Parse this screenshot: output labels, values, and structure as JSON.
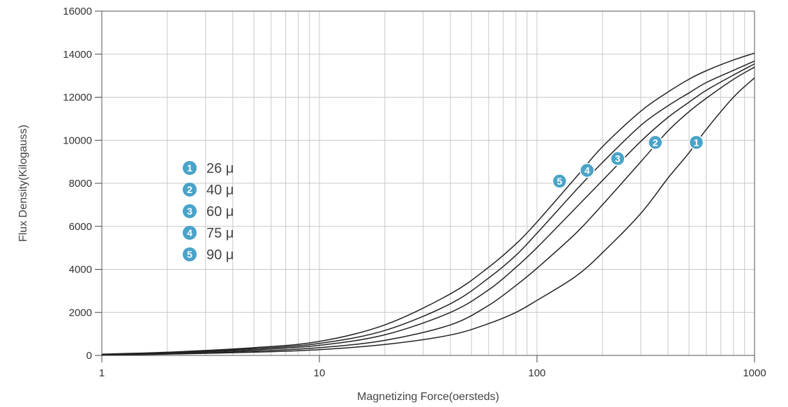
{
  "chart_data": {
    "type": "line",
    "title": "",
    "xlabel": "Magnetizing Force(oersteds)",
    "ylabel": "Flux Density(Kilogauss)",
    "x_scale": "log",
    "xlim": [
      1,
      1000
    ],
    "ylim": [
      0,
      16000
    ],
    "x_ticks": [
      {
        "value": 1,
        "label": "1"
      },
      {
        "value": 10,
        "label": "10"
      },
      {
        "value": 100,
        "label": "100"
      },
      {
        "value": 1000,
        "label": "1000"
      }
    ],
    "y_ticks": [
      {
        "value": 0,
        "label": "0"
      },
      {
        "value": 2000,
        "label": "2000"
      },
      {
        "value": 4000,
        "label": "4000"
      },
      {
        "value": 6000,
        "label": "6000"
      },
      {
        "value": 8000,
        "label": "8000"
      },
      {
        "value": 10000,
        "label": "10000"
      },
      {
        "value": 12000,
        "label": "12000"
      },
      {
        "value": 14000,
        "label": "14000"
      },
      {
        "value": 16000,
        "label": "16000"
      }
    ],
    "grid": true,
    "legend_position": "left",
    "line_color": "#222222",
    "marker_color": "#4aa3c8",
    "series": [
      {
        "name": "26 μ",
        "marker": "1",
        "marker_at": [
          540,
          9900
        ],
        "points": [
          [
            1,
            20
          ],
          [
            2,
            60
          ],
          [
            5,
            150
          ],
          [
            10,
            270
          ],
          [
            20,
            510
          ],
          [
            40,
            950
          ],
          [
            60,
            1480
          ],
          [
            80,
            2000
          ],
          [
            100,
            2560
          ],
          [
            150,
            3660
          ],
          [
            200,
            4770
          ],
          [
            300,
            6600
          ],
          [
            400,
            8240
          ],
          [
            500,
            9420
          ],
          [
            600,
            10500
          ],
          [
            800,
            12000
          ],
          [
            1000,
            12900
          ]
        ]
      },
      {
        "name": "40 μ",
        "marker": "2",
        "marker_at": [
          350,
          9900
        ],
        "points": [
          [
            1,
            30
          ],
          [
            2,
            80
          ],
          [
            5,
            200
          ],
          [
            10,
            360
          ],
          [
            20,
            700
          ],
          [
            40,
            1420
          ],
          [
            60,
            2330
          ],
          [
            80,
            3250
          ],
          [
            100,
            4050
          ],
          [
            150,
            5650
          ],
          [
            200,
            7000
          ],
          [
            300,
            9000
          ],
          [
            400,
            10430
          ],
          [
            500,
            11330
          ],
          [
            600,
            11950
          ],
          [
            800,
            12830
          ],
          [
            1000,
            13400
          ]
        ]
      },
      {
        "name": "60 μ",
        "marker": "3",
        "marker_at": [
          235,
          9150
        ],
        "points": [
          [
            1,
            40
          ],
          [
            2,
            110
          ],
          [
            5,
            260
          ],
          [
            10,
            470
          ],
          [
            20,
            960
          ],
          [
            40,
            2000
          ],
          [
            60,
            3050
          ],
          [
            80,
            4090
          ],
          [
            100,
            5010
          ],
          [
            150,
            6830
          ],
          [
            200,
            8130
          ],
          [
            300,
            9950
          ],
          [
            400,
            11060
          ],
          [
            500,
            11770
          ],
          [
            600,
            12320
          ],
          [
            800,
            13030
          ],
          [
            1000,
            13550
          ]
        ]
      },
      {
        "name": "75 μ",
        "marker": "4",
        "marker_at": [
          170,
          8600
        ],
        "points": [
          [
            1,
            50
          ],
          [
            2,
            130
          ],
          [
            5,
            310
          ],
          [
            10,
            560
          ],
          [
            20,
            1160
          ],
          [
            40,
            2400
          ],
          [
            60,
            3600
          ],
          [
            80,
            4650
          ],
          [
            100,
            5680
          ],
          [
            150,
            7640
          ],
          [
            200,
            8970
          ],
          [
            300,
            10690
          ],
          [
            400,
            11600
          ],
          [
            500,
            12200
          ],
          [
            600,
            12680
          ],
          [
            800,
            13250
          ],
          [
            1000,
            13680
          ]
        ]
      },
      {
        "name": "90 μ",
        "marker": "5",
        "marker_at": [
          127,
          8100
        ],
        "points": [
          [
            1,
            60
          ],
          [
            2,
            150
          ],
          [
            5,
            360
          ],
          [
            10,
            650
          ],
          [
            20,
            1420
          ],
          [
            40,
            2860
          ],
          [
            60,
            4100
          ],
          [
            80,
            5180
          ],
          [
            100,
            6200
          ],
          [
            150,
            8240
          ],
          [
            200,
            9700
          ],
          [
            300,
            11350
          ],
          [
            400,
            12240
          ],
          [
            500,
            12840
          ],
          [
            600,
            13230
          ],
          [
            800,
            13730
          ],
          [
            1000,
            14050
          ]
        ]
      }
    ]
  }
}
